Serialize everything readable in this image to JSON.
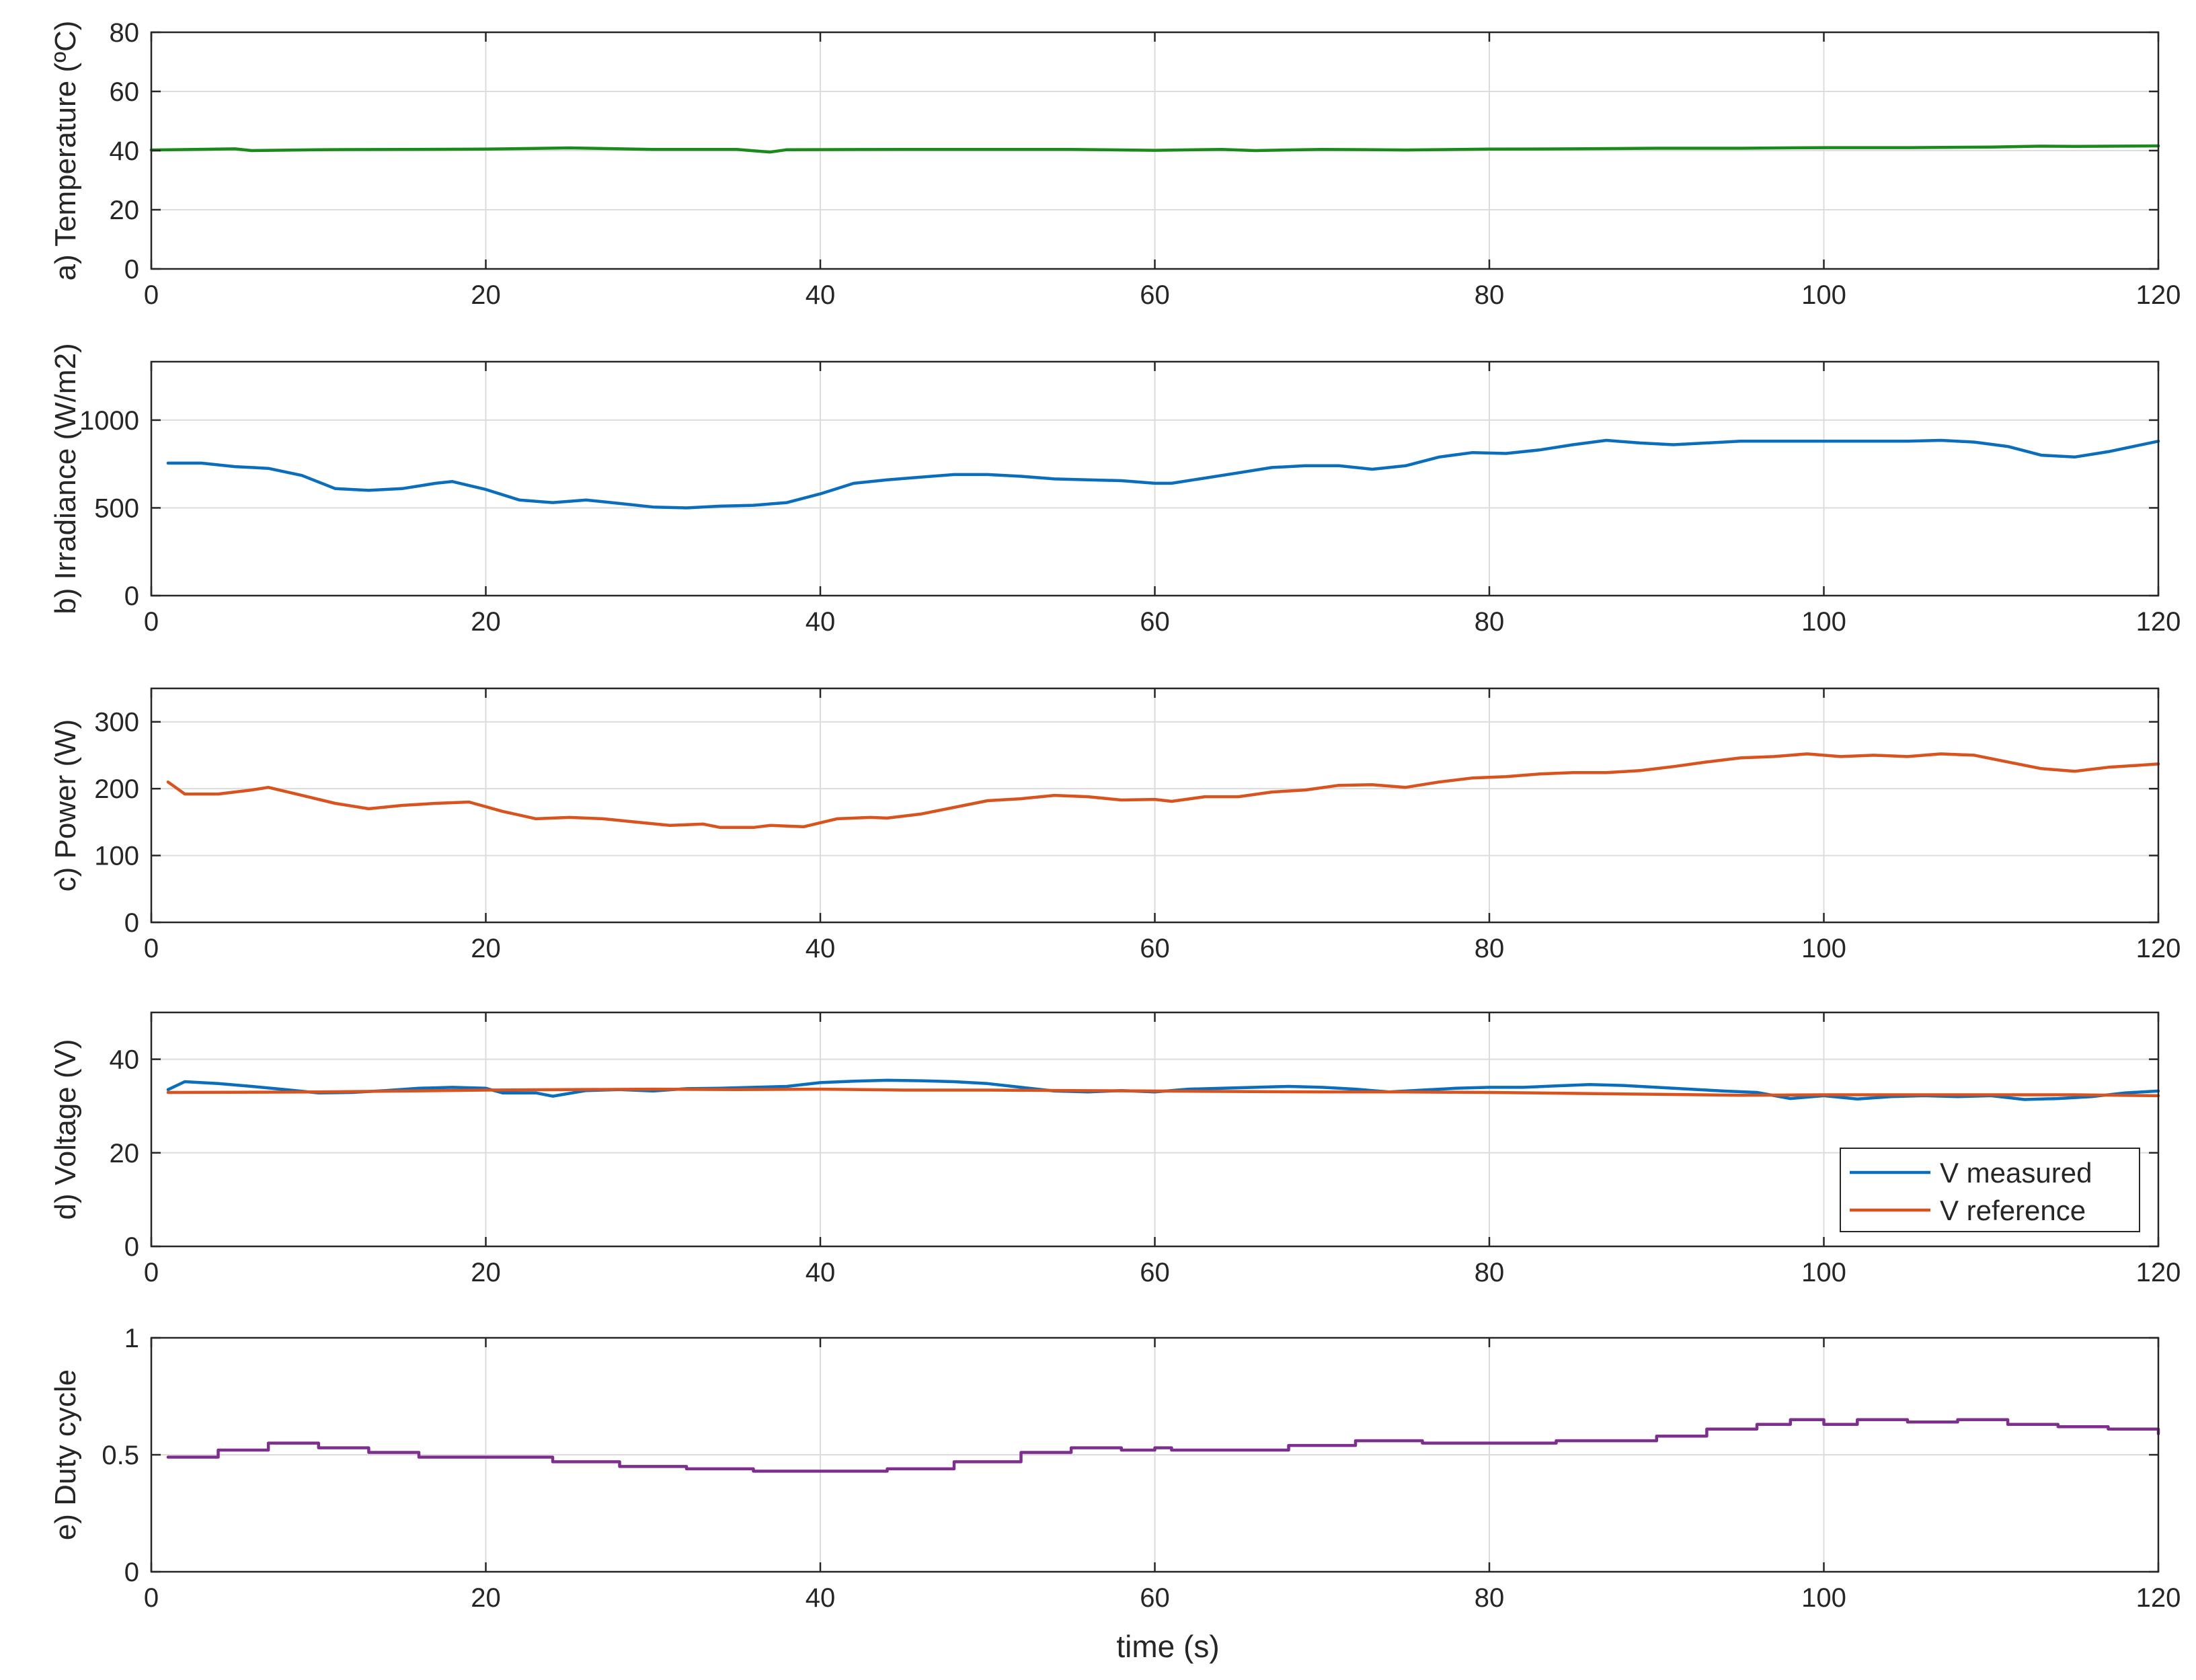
{
  "figure": {
    "xlabel": "time (s)",
    "colors": {
      "temperature": "#1a8a1a",
      "irradiance": "#0a6ebd",
      "power": "#d9531e",
      "v_measured": "#0a6ebd",
      "v_reference": "#d9531e",
      "duty": "#7e2f8e",
      "grid": "#dcdcdc",
      "axis": "#262626"
    }
  },
  "chart_data": [
    {
      "type": "line",
      "ylabel": "a) Temperature (ºC)",
      "xlim": [
        0,
        120
      ],
      "ylim": [
        0,
        80
      ],
      "xticks": [
        0,
        20,
        40,
        60,
        80,
        100,
        120
      ],
      "yticks": [
        0,
        20,
        40,
        60,
        80
      ],
      "grid": true,
      "series": [
        {
          "color": "#1a8a1a",
          "x": [
            0,
            5,
            6,
            10,
            15,
            20,
            25,
            30,
            35,
            37,
            38,
            45,
            50,
            55,
            60,
            64,
            66,
            70,
            75,
            80,
            85,
            90,
            95,
            100,
            105,
            110,
            113,
            115,
            120
          ],
          "y": [
            40.2,
            40.6,
            40.0,
            40.3,
            40.4,
            40.5,
            40.9,
            40.4,
            40.4,
            39.5,
            40.3,
            40.4,
            40.4,
            40.4,
            40.1,
            40.4,
            40.0,
            40.4,
            40.2,
            40.5,
            40.6,
            40.8,
            40.8,
            41.0,
            41.0,
            41.2,
            41.5,
            41.4,
            41.6
          ]
        }
      ]
    },
    {
      "type": "line",
      "ylabel": "b) Irradiance (W/m2)",
      "xlim": [
        0,
        120
      ],
      "ylim": [
        0,
        1333
      ],
      "xticks": [
        0,
        20,
        40,
        60,
        80,
        100,
        120
      ],
      "yticks": [
        0,
        500,
        1000
      ],
      "grid": true,
      "series": [
        {
          "color": "#0a6ebd",
          "x": [
            1,
            3,
            5,
            7,
            9,
            11,
            13,
            15,
            17,
            18,
            20,
            22,
            24,
            26,
            28,
            30,
            32,
            34,
            36,
            38,
            40,
            42,
            44,
            46,
            48,
            50,
            52,
            54,
            56,
            58,
            60,
            61,
            63,
            65,
            67,
            69,
            71,
            73,
            75,
            77,
            79,
            81,
            83,
            85,
            87,
            89,
            91,
            93,
            95,
            97,
            99,
            101,
            103,
            105,
            107,
            109,
            111,
            113,
            115,
            117,
            120
          ],
          "y": [
            755,
            755,
            735,
            725,
            685,
            610,
            600,
            610,
            640,
            650,
            605,
            545,
            530,
            545,
            525,
            505,
            500,
            510,
            515,
            530,
            580,
            640,
            660,
            675,
            690,
            690,
            680,
            665,
            660,
            655,
            640,
            640,
            670,
            700,
            730,
            740,
            740,
            720,
            740,
            790,
            815,
            810,
            830,
            860,
            885,
            870,
            860,
            870,
            880,
            880,
            880,
            880,
            880,
            880,
            885,
            875,
            850,
            800,
            790,
            820,
            880
          ]
        }
      ]
    },
    {
      "type": "line",
      "ylabel": "c) Power (W)",
      "xlim": [
        0,
        120
      ],
      "ylim": [
        0,
        350
      ],
      "xticks": [
        0,
        20,
        40,
        60,
        80,
        100,
        120
      ],
      "yticks": [
        0,
        100,
        200,
        300
      ],
      "grid": true,
      "series": [
        {
          "color": "#d9531e",
          "x": [
            1,
            2,
            4,
            6,
            7,
            9,
            11,
            13,
            15,
            17,
            19,
            21,
            23,
            25,
            27,
            29,
            31,
            33,
            34,
            36,
            37,
            39,
            41,
            43,
            44,
            46,
            48,
            50,
            52,
            54,
            56,
            58,
            60,
            61,
            63,
            65,
            67,
            69,
            71,
            73,
            75,
            77,
            79,
            81,
            83,
            85,
            87,
            89,
            91,
            93,
            95,
            97,
            99,
            101,
            103,
            105,
            107,
            109,
            111,
            113,
            115,
            117,
            120
          ],
          "y": [
            210,
            192,
            192,
            198,
            202,
            190,
            178,
            170,
            175,
            178,
            180,
            166,
            155,
            157,
            155,
            150,
            145,
            147,
            142,
            142,
            145,
            143,
            155,
            157,
            156,
            162,
            172,
            182,
            185,
            190,
            188,
            183,
            184,
            181,
            188,
            188,
            195,
            198,
            205,
            206,
            202,
            210,
            216,
            218,
            222,
            224,
            224,
            227,
            233,
            240,
            246,
            248,
            252,
            248,
            250,
            248,
            252,
            250,
            240,
            230,
            226,
            232,
            237
          ]
        }
      ]
    },
    {
      "type": "line",
      "ylabel": "d) Voltage (V)",
      "xlim": [
        0,
        120
      ],
      "ylim": [
        0,
        50
      ],
      "xticks": [
        0,
        20,
        40,
        60,
        80,
        100,
        120
      ],
      "yticks": [
        0,
        20,
        40
      ],
      "grid": true,
      "legend": "bottom-right",
      "series": [
        {
          "name": "V measured",
          "color": "#0a6ebd",
          "x": [
            1,
            2,
            4,
            6,
            8,
            10,
            12,
            14,
            16,
            18,
            20,
            21,
            23,
            24,
            26,
            28,
            30,
            32,
            34,
            36,
            38,
            40,
            42,
            44,
            46,
            48,
            50,
            52,
            54,
            56,
            58,
            60,
            62,
            64,
            66,
            68,
            70,
            72,
            74,
            76,
            78,
            80,
            82,
            84,
            86,
            88,
            90,
            92,
            94,
            96,
            98,
            100,
            102,
            104,
            106,
            108,
            110,
            112,
            114,
            116,
            118,
            120
          ],
          "y": [
            33.5,
            35.2,
            34.8,
            34.2,
            33.5,
            32.8,
            32.9,
            33.3,
            33.8,
            34.0,
            33.8,
            32.8,
            32.8,
            32.1,
            33.3,
            33.5,
            33.2,
            33.7,
            33.8,
            34.0,
            34.2,
            35.0,
            35.3,
            35.5,
            35.4,
            35.2,
            34.8,
            34.0,
            33.2,
            33.0,
            33.3,
            33.0,
            33.6,
            33.8,
            34.0,
            34.2,
            34.0,
            33.6,
            33.0,
            33.4,
            33.8,
            34.0,
            34.0,
            34.3,
            34.6,
            34.4,
            34.0,
            33.6,
            33.2,
            32.9,
            31.6,
            32.2,
            31.5,
            32.0,
            32.2,
            32.0,
            32.2,
            31.4,
            31.6,
            32.0,
            32.8,
            33.2
          ]
        },
        {
          "name": "V reference",
          "color": "#d9531e",
          "x": [
            1,
            10,
            20,
            30,
            35,
            40,
            45,
            50,
            55,
            60,
            65,
            70,
            75,
            80,
            85,
            90,
            95,
            100,
            105,
            110,
            115,
            120
          ],
          "y": [
            32.9,
            33.0,
            33.4,
            33.6,
            33.5,
            33.6,
            33.4,
            33.4,
            33.3,
            33.2,
            33.1,
            33.0,
            33.0,
            32.9,
            32.7,
            32.5,
            32.3,
            32.4,
            32.4,
            32.4,
            32.4,
            32.2
          ]
        }
      ]
    },
    {
      "type": "line",
      "ylabel": "e) Duty cycle",
      "xlim": [
        0,
        120
      ],
      "ylim": [
        0,
        1
      ],
      "xticks": [
        0,
        20,
        40,
        60,
        80,
        100,
        120
      ],
      "yticks": [
        0,
        0.5,
        1
      ],
      "grid": true,
      "stepped": true,
      "series": [
        {
          "color": "#7e2f8e",
          "x": [
            1,
            4,
            7,
            8,
            10,
            13,
            16,
            20,
            24,
            28,
            32,
            36,
            40,
            44,
            48,
            52,
            55,
            58,
            60,
            61,
            64,
            68,
            72,
            76,
            80,
            84,
            88,
            90,
            93,
            96,
            98,
            100,
            102,
            105,
            108,
            111,
            114,
            117,
            120
          ],
          "y": [
            0.49,
            0.52,
            0.55,
            0.55,
            0.53,
            0.51,
            0.49,
            0.49,
            0.47,
            0.45,
            0.44,
            0.43,
            0.43,
            0.44,
            0.47,
            0.51,
            0.53,
            0.52,
            0.53,
            0.52,
            0.52,
            0.54,
            0.56,
            0.55,
            0.55,
            0.56,
            0.56,
            0.58,
            0.61,
            0.63,
            0.65,
            0.63,
            0.65,
            0.64,
            0.65,
            0.63,
            0.62,
            0.61,
            0.59
          ]
        }
      ]
    }
  ]
}
